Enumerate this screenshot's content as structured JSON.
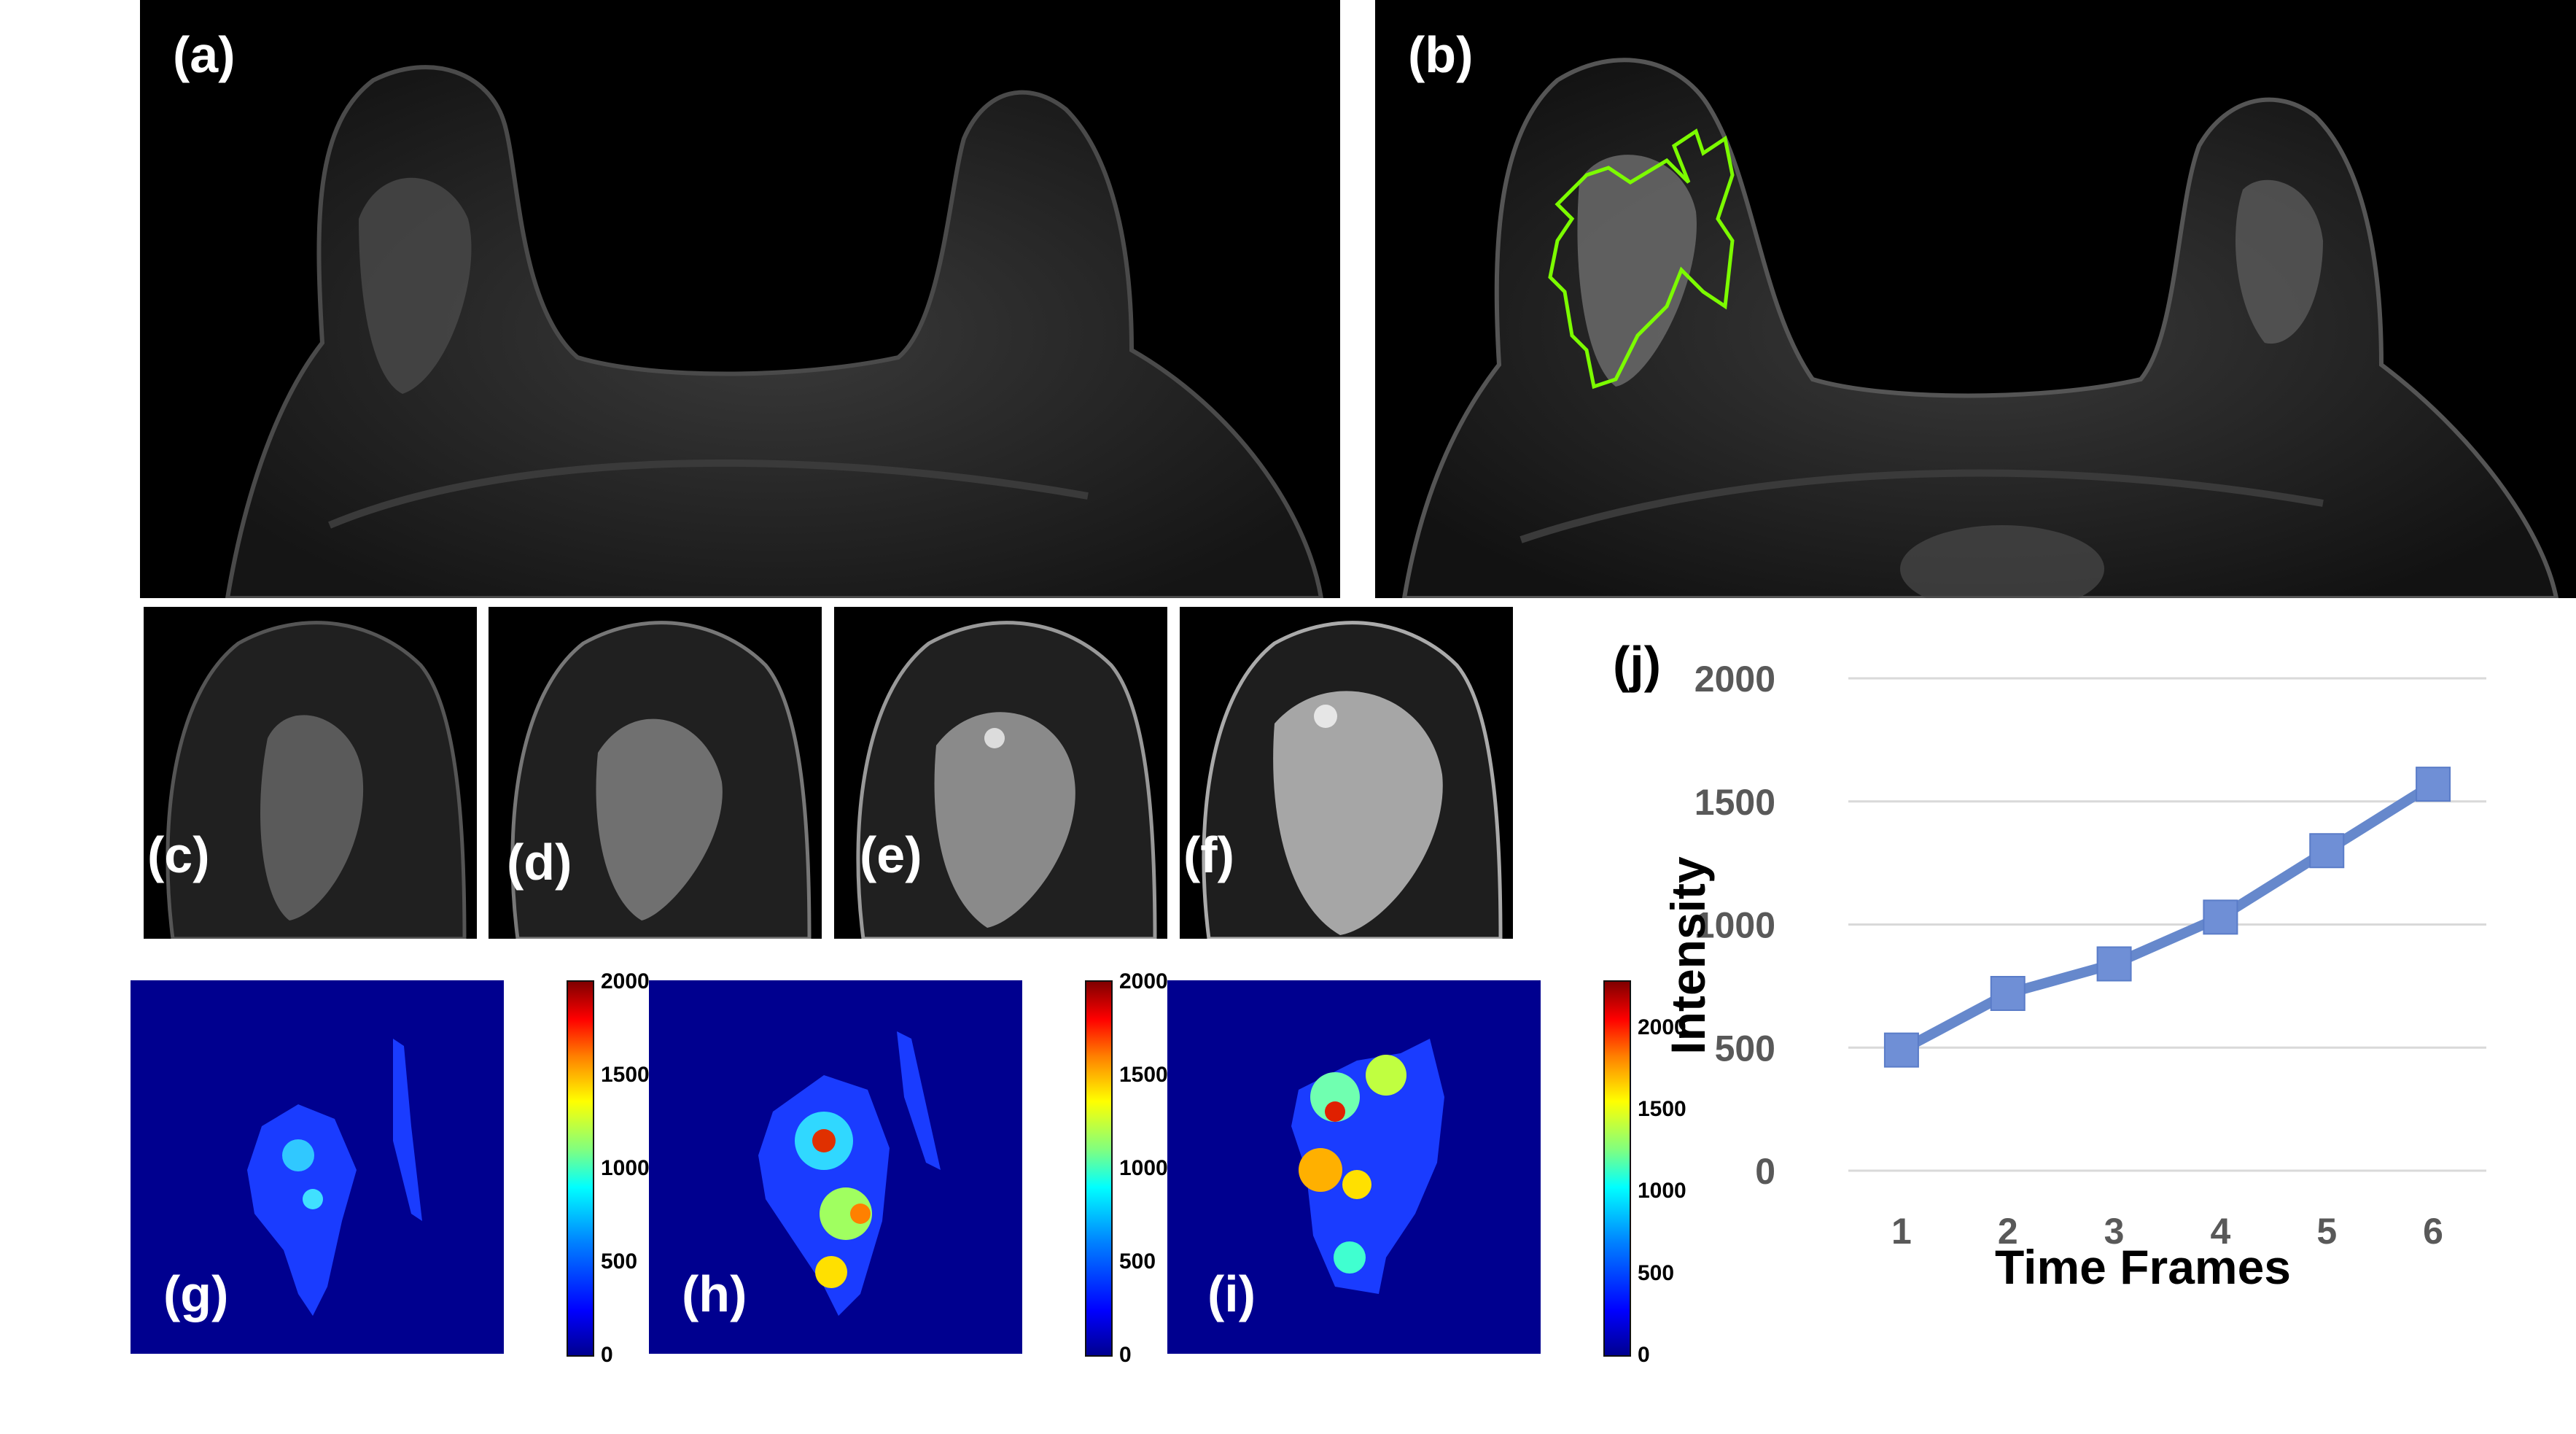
{
  "panel_labels": {
    "a": "(a)",
    "b": "(b)",
    "c": "(c)",
    "d": "(d)",
    "e": "(e)",
    "f": "(f)",
    "g": "(g)",
    "h": "(h)",
    "i": "(i)",
    "j": "(j)"
  },
  "colorbars": {
    "g": {
      "ticks": [
        "2000",
        "1500",
        "1000",
        "500",
        "0"
      ]
    },
    "h": {
      "ticks": [
        "2000",
        "1500",
        "1000",
        "500",
        "0"
      ]
    },
    "i": {
      "ticks": [
        "2000",
        "1500",
        "1000",
        "500",
        "0"
      ]
    }
  },
  "colors": {
    "roi_contour": "#7CFC00",
    "series_line": "#6688CC",
    "series_marker": "#6F8FD6",
    "grid": "#d9d9d9",
    "axis_text": "#595959"
  },
  "chart_data": {
    "type": "line",
    "x": [
      1,
      2,
      3,
      4,
      5,
      6
    ],
    "series": [
      {
        "values": [
          490,
          720,
          840,
          1030,
          1300,
          1570
        ]
      }
    ],
    "xlabel": "Time Frames",
    "ylabel": "Intensity",
    "x_tick_labels": [
      "1",
      "2",
      "3",
      "4",
      "5",
      "6"
    ],
    "y_tick_labels": [
      "2000",
      "1500",
      "1000",
      "500",
      "0"
    ],
    "ylim": [
      0,
      2000
    ],
    "grid": true,
    "marker": "square"
  }
}
